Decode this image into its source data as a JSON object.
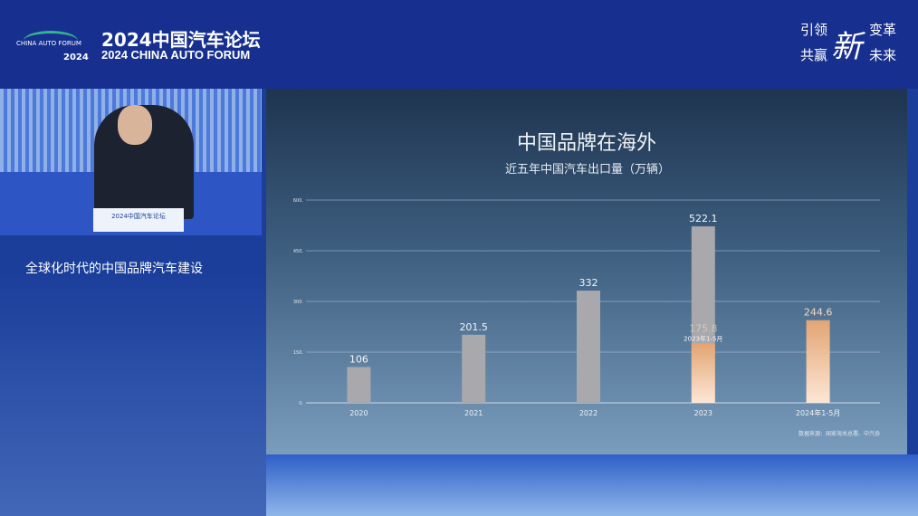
{
  "header": {
    "logo_text": "CHINA AUTO FORUM",
    "logo_year": "2024",
    "title_cn": "2024中国汽车论坛",
    "title_en": "2024 CHINA AUTO FORUM",
    "slogan": {
      "a": "引领",
      "b": "变革",
      "c": "共赢",
      "d": "未来",
      "big": "新"
    }
  },
  "video": {
    "podium_text": "2024中国汽车论坛"
  },
  "caption": "全球化时代的中国品牌汽车建设",
  "slide": {
    "title": "中国品牌在海外",
    "subtitle": "近五年中国汽车出口量（万辆）",
    "source": "数据来源：国家海关总署、中汽协"
  },
  "chart_data": {
    "type": "bar",
    "title": "中国品牌在海外",
    "subtitle": "近五年中国汽车出口量（万辆）",
    "categories": [
      "2020",
      "2021",
      "2022",
      "2023",
      "2024年1-5月"
    ],
    "series": [
      {
        "values": [
          106,
          201.5,
          332,
          522.1,
          null
        ],
        "color": "#a9a8ad"
      },
      {
        "values": [
          null,
          null,
          null,
          175.8,
          244.6
        ],
        "color": "#e8a878",
        "labels": [
          null,
          null,
          null,
          "2023年1-5月",
          null
        ]
      }
    ],
    "yticks": [
      "0.",
      "150.",
      "300.",
      "450.",
      "600."
    ],
    "ylim": [
      0,
      600
    ],
    "grid": true
  }
}
